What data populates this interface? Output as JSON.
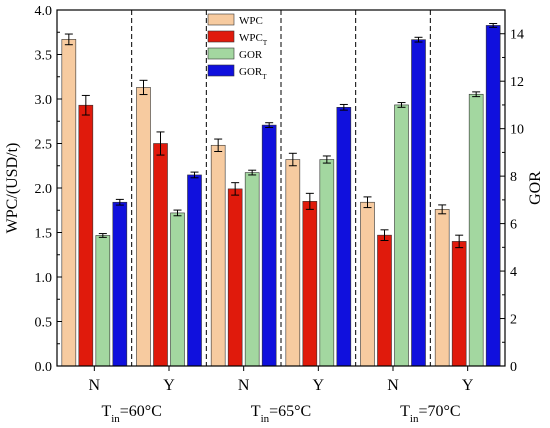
{
  "chart_data": {
    "type": "bar",
    "title": "",
    "groups": [
      {
        "label_base": "T",
        "label_sub": "in",
        "label_rest": "=60°C",
        "categories": [
          "N",
          "Y"
        ]
      },
      {
        "label_base": "T",
        "label_sub": "in",
        "label_rest": "=65°C",
        "categories": [
          "N",
          "Y"
        ]
      },
      {
        "label_base": "T",
        "label_sub": "in",
        "label_rest": "=70°C",
        "categories": [
          "N",
          "Y"
        ]
      }
    ],
    "categories": [
      "N",
      "Y",
      "N",
      "Y",
      "N",
      "Y"
    ],
    "ylabel": "WPC/(USD/t)",
    "ylabel_right": "GOR",
    "ylim": [
      0,
      4.0
    ],
    "ylim_right": [
      0,
      15
    ],
    "yticks": [
      "0.0",
      "0.5",
      "1.0",
      "1.5",
      "2.0",
      "2.5",
      "3.0",
      "3.5",
      "4.0"
    ],
    "yticks_right": [
      "0",
      "2",
      "4",
      "6",
      "8",
      "10",
      "12",
      "14"
    ],
    "legend_position": "top-center",
    "series": [
      {
        "name": "WPC",
        "name_sub": "",
        "axis": "left",
        "color": "#f7cba0",
        "values": [
          3.67,
          3.13,
          2.48,
          2.32,
          1.84,
          1.76
        ],
        "errors": [
          0.06,
          0.08,
          0.07,
          0.07,
          0.06,
          0.05
        ]
      },
      {
        "name": "WPC",
        "name_sub": "T",
        "axis": "left",
        "color": "#e01a0c",
        "values": [
          2.93,
          2.5,
          1.99,
          1.85,
          1.47,
          1.4
        ],
        "errors": [
          0.11,
          0.13,
          0.07,
          0.09,
          0.06,
          0.07
        ]
      },
      {
        "name": "GOR",
        "name_sub": "",
        "axis": "right",
        "color": "#a3d7a0",
        "values": [
          5.5,
          6.45,
          8.15,
          8.7,
          11.0,
          11.45
        ],
        "errors": [
          0.08,
          0.12,
          0.1,
          0.15,
          0.1,
          0.1
        ]
      },
      {
        "name": "GOR",
        "name_sub": "T",
        "axis": "right",
        "color": "#1010dd",
        "values": [
          6.9,
          8.05,
          10.15,
          10.9,
          13.75,
          14.35
        ],
        "errors": [
          0.12,
          0.12,
          0.1,
          0.12,
          0.1,
          0.08
        ]
      }
    ]
  }
}
